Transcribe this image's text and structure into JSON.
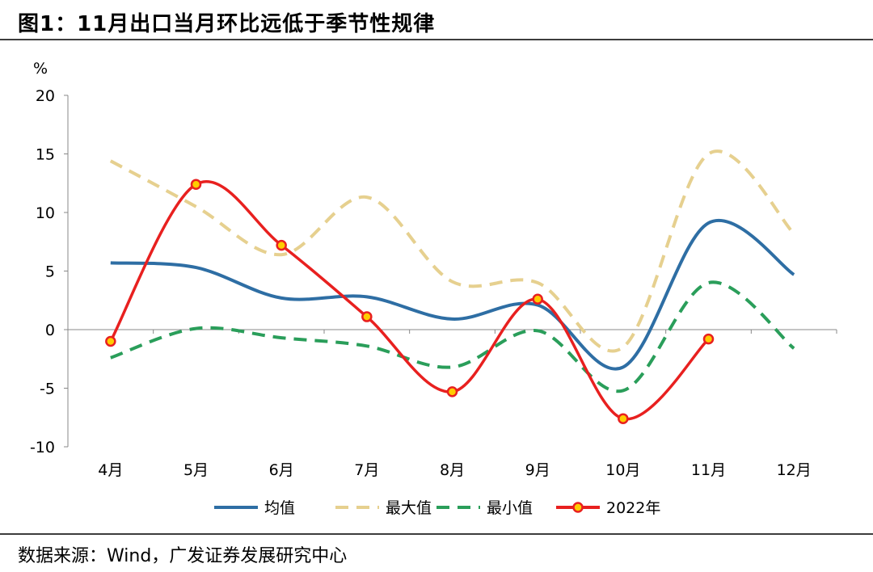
{
  "title": "图1：11月出口当月环比远低于季节性规律",
  "source": "数据来源：Wind，广发证券发展研究中心",
  "chart_data": {
    "type": "line",
    "unit": "%",
    "categories": [
      "4月",
      "5月",
      "6月",
      "7月",
      "8月",
      "9月",
      "10月",
      "11月",
      "12月"
    ],
    "ylim": [
      -10,
      20
    ],
    "yticks": [
      -10,
      -5,
      0,
      5,
      10,
      15,
      20
    ],
    "grid": false,
    "legend_position": "bottom",
    "series": [
      {
        "name": "均值",
        "color": "#2e6ea4",
        "style": "solid",
        "markers": false,
        "values": [
          5.7,
          5.3,
          2.7,
          2.8,
          0.9,
          2.1,
          -3.2,
          9.1,
          4.7
        ]
      },
      {
        "name": "最大值",
        "color": "#e6d08f",
        "style": "dashed",
        "markers": false,
        "values": [
          14.4,
          10.5,
          6.4,
          11.3,
          4.1,
          4.0,
          -1.5,
          15.0,
          8.2
        ]
      },
      {
        "name": "最小值",
        "color": "#2a9e5a",
        "style": "dashed",
        "markers": false,
        "values": [
          -2.4,
          0.1,
          -0.7,
          -1.4,
          -3.2,
          -0.1,
          -5.2,
          4.0,
          -1.6
        ]
      },
      {
        "name": "2022年",
        "color": "#e8201f",
        "style": "solid",
        "markers": true,
        "marker_fill": "#ffcc00",
        "values": [
          -1.0,
          12.4,
          7.2,
          1.1,
          -5.3,
          2.6,
          -7.6,
          -0.8,
          null
        ]
      }
    ]
  }
}
